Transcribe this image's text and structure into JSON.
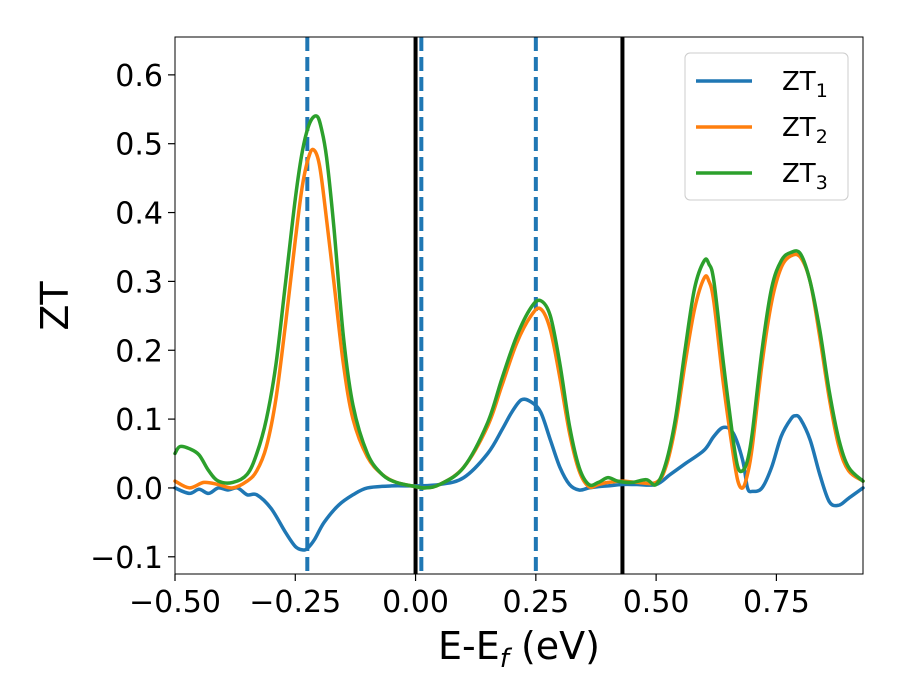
{
  "chart_data": {
    "type": "line",
    "title": "",
    "xlabel": "E-E",
    "xlabel_sub": "f",
    "xlabel_unit": " (eV)",
    "ylabel": "ZT",
    "xlim": [
      -0.5,
      0.93
    ],
    "ylim": [
      -0.125,
      0.655
    ],
    "grid": false,
    "legend_position": "top-right",
    "x_ticks": [
      -0.5,
      -0.25,
      0.0,
      0.25,
      0.5,
      0.75
    ],
    "x_tick_labels": [
      "−0.50",
      "−0.25",
      "0.00",
      "0.25",
      "0.50",
      "0.75"
    ],
    "y_ticks": [
      -0.1,
      0.0,
      0.1,
      0.2,
      0.3,
      0.4,
      0.5,
      0.6
    ],
    "y_tick_labels": [
      "−0.1",
      "0.0",
      "0.1",
      "0.2",
      "0.3",
      "0.4",
      "0.5",
      "0.6"
    ],
    "vertical_lines": [
      {
        "x": -0.225,
        "style": "dashed",
        "color": "#1f77b4"
      },
      {
        "x": 0.0,
        "style": "solid",
        "color": "#000000"
      },
      {
        "x": 0.012,
        "style": "dashed",
        "color": "#1f77b4"
      },
      {
        "x": 0.25,
        "style": "dashed",
        "color": "#1f77b4"
      },
      {
        "x": 0.43,
        "style": "solid",
        "color": "#000000"
      }
    ],
    "series": [
      {
        "name": "ZT",
        "name_sub": "1",
        "color": "#1f77b4",
        "x": [
          -0.5,
          -0.47,
          -0.45,
          -0.43,
          -0.41,
          -0.39,
          -0.37,
          -0.35,
          -0.33,
          -0.3,
          -0.27,
          -0.25,
          -0.235,
          -0.225,
          -0.21,
          -0.19,
          -0.16,
          -0.13,
          -0.1,
          -0.05,
          0.0,
          0.05,
          0.1,
          0.15,
          0.18,
          0.2,
          0.22,
          0.24,
          0.26,
          0.28,
          0.3,
          0.32,
          0.34,
          0.36,
          0.38,
          0.4,
          0.43,
          0.46,
          0.5,
          0.53,
          0.56,
          0.6,
          0.62,
          0.64,
          0.66,
          0.68,
          0.69,
          0.7,
          0.72,
          0.74,
          0.76,
          0.78,
          0.79,
          0.8,
          0.82,
          0.84,
          0.86,
          0.88,
          0.9,
          0.93
        ],
        "y": [
          0.0,
          -0.008,
          -0.002,
          -0.008,
          0.0,
          -0.003,
          0.0,
          -0.01,
          -0.01,
          -0.03,
          -0.065,
          -0.085,
          -0.09,
          -0.088,
          -0.075,
          -0.05,
          -0.025,
          -0.01,
          0.0,
          0.003,
          0.003,
          0.005,
          0.015,
          0.05,
          0.085,
          0.11,
          0.128,
          0.125,
          0.11,
          0.07,
          0.03,
          0.005,
          -0.003,
          0.0,
          0.002,
          0.003,
          0.005,
          0.005,
          0.005,
          0.02,
          0.035,
          0.055,
          0.075,
          0.088,
          0.08,
          0.04,
          0.0,
          -0.005,
          0.0,
          0.03,
          0.075,
          0.1,
          0.105,
          0.1,
          0.07,
          0.02,
          -0.02,
          -0.025,
          -0.015,
          0.0
        ]
      },
      {
        "name": "ZT",
        "name_sub": "2",
        "color": "#ff7f0e",
        "x": [
          -0.5,
          -0.47,
          -0.44,
          -0.41,
          -0.38,
          -0.35,
          -0.33,
          -0.31,
          -0.29,
          -0.27,
          -0.25,
          -0.235,
          -0.22,
          -0.21,
          -0.2,
          -0.19,
          -0.17,
          -0.15,
          -0.13,
          -0.1,
          -0.07,
          -0.04,
          0.0,
          0.02,
          0.05,
          0.1,
          0.15,
          0.18,
          0.21,
          0.24,
          0.26,
          0.28,
          0.3,
          0.32,
          0.34,
          0.36,
          0.38,
          0.4,
          0.43,
          0.46,
          0.5,
          0.52,
          0.54,
          0.56,
          0.58,
          0.6,
          0.61,
          0.62,
          0.64,
          0.66,
          0.67,
          0.68,
          0.69,
          0.7,
          0.72,
          0.74,
          0.76,
          0.78,
          0.8,
          0.82,
          0.84,
          0.86,
          0.88,
          0.9,
          0.93
        ],
        "y": [
          0.01,
          0.0,
          0.008,
          0.005,
          0.0,
          0.01,
          0.025,
          0.06,
          0.13,
          0.24,
          0.36,
          0.44,
          0.485,
          0.49,
          0.47,
          0.42,
          0.3,
          0.18,
          0.1,
          0.045,
          0.02,
          0.008,
          0.002,
          0.0,
          0.005,
          0.03,
          0.09,
          0.15,
          0.21,
          0.25,
          0.26,
          0.23,
          0.16,
          0.08,
          0.025,
          0.002,
          0.005,
          0.008,
          0.01,
          0.008,
          0.008,
          0.03,
          0.09,
          0.18,
          0.26,
          0.305,
          0.3,
          0.27,
          0.15,
          0.05,
          0.01,
          0.0,
          0.02,
          0.06,
          0.18,
          0.27,
          0.32,
          0.337,
          0.335,
          0.3,
          0.22,
          0.13,
          0.06,
          0.025,
          0.01
        ]
      },
      {
        "name": "ZT",
        "name_sub": "3",
        "color": "#2ca02c",
        "x": [
          -0.5,
          -0.49,
          -0.47,
          -0.45,
          -0.43,
          -0.41,
          -0.38,
          -0.35,
          -0.33,
          -0.31,
          -0.29,
          -0.27,
          -0.25,
          -0.235,
          -0.22,
          -0.205,
          -0.195,
          -0.185,
          -0.17,
          -0.15,
          -0.13,
          -0.1,
          -0.07,
          -0.04,
          0.0,
          0.02,
          0.05,
          0.1,
          0.15,
          0.18,
          0.21,
          0.24,
          0.26,
          0.28,
          0.3,
          0.32,
          0.34,
          0.36,
          0.38,
          0.4,
          0.42,
          0.45,
          0.48,
          0.5,
          0.52,
          0.54,
          0.56,
          0.58,
          0.6,
          0.61,
          0.62,
          0.64,
          0.66,
          0.67,
          0.68,
          0.69,
          0.7,
          0.72,
          0.74,
          0.76,
          0.78,
          0.8,
          0.82,
          0.84,
          0.86,
          0.88,
          0.9,
          0.93
        ],
        "y": [
          0.05,
          0.06,
          0.057,
          0.048,
          0.025,
          0.01,
          0.008,
          0.02,
          0.05,
          0.1,
          0.18,
          0.3,
          0.42,
          0.49,
          0.53,
          0.54,
          0.52,
          0.48,
          0.38,
          0.22,
          0.12,
          0.05,
          0.02,
          0.008,
          0.002,
          0.0,
          0.005,
          0.03,
          0.095,
          0.16,
          0.22,
          0.262,
          0.272,
          0.25,
          0.18,
          0.09,
          0.03,
          0.005,
          0.008,
          0.015,
          0.01,
          0.008,
          0.012,
          0.005,
          0.035,
          0.1,
          0.2,
          0.29,
          0.33,
          0.325,
          0.3,
          0.18,
          0.07,
          0.03,
          0.025,
          0.04,
          0.08,
          0.2,
          0.29,
          0.33,
          0.342,
          0.34,
          0.3,
          0.23,
          0.14,
          0.07,
          0.03,
          0.01
        ]
      }
    ]
  }
}
